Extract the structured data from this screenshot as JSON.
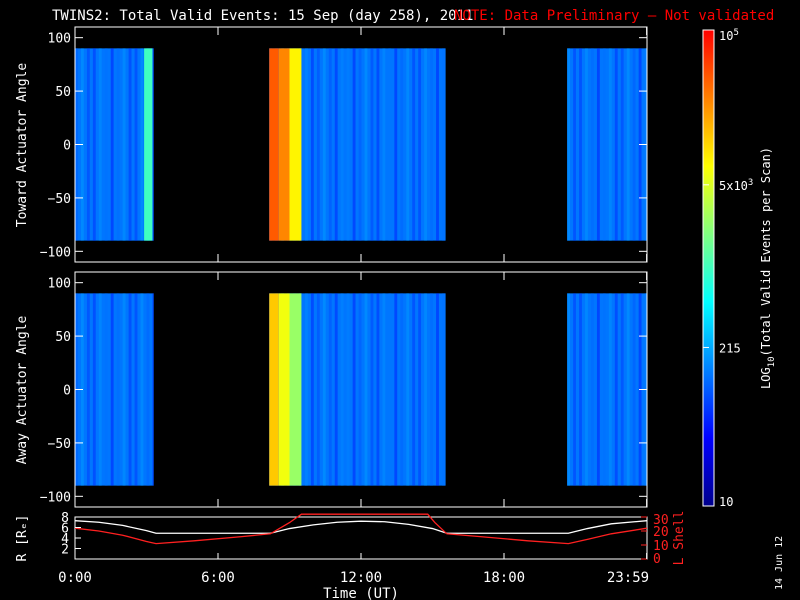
{
  "header": {
    "title": "TWINS2: Total Valid Events: 15 Sep (day 258), 2011",
    "note": "NOTE: Data Preliminary – Not validated"
  },
  "stamp": "14 Jun 12",
  "colors": {
    "background": "#000000",
    "foreground": "#ffffff",
    "note": "#ff0000",
    "lshell": "#ff2020",
    "radius": "#ffffff"
  },
  "chart_data": [
    {
      "type": "heatmap",
      "panel": "top",
      "ylabel": "Toward Actuator Angle",
      "ylim": [
        -110,
        110
      ],
      "yticks": [
        100,
        50,
        0,
        -50,
        -100
      ],
      "ytick_labels": [
        "100",
        "50",
        "0",
        "−50",
        "−100"
      ],
      "xlim": [
        0,
        24
      ],
      "data_ylim": [
        -90,
        90
      ],
      "data_segments": [
        {
          "start": 0.0,
          "end": 3.3
        },
        {
          "start": 8.15,
          "end": 15.55
        },
        {
          "start": 20.65,
          "end": 24.0
        }
      ],
      "features": [
        {
          "hour_start": 8.15,
          "hour_end": 8.55,
          "log_level": 4.6
        },
        {
          "hour_start": 8.55,
          "hour_end": 9.0,
          "log_level": 4.4
        },
        {
          "hour_start": 9.0,
          "hour_end": 9.5,
          "log_level": 3.9
        },
        {
          "hour_start": 2.9,
          "hour_end": 3.25,
          "log_level": 3.0
        }
      ]
    },
    {
      "type": "heatmap",
      "panel": "bottom",
      "ylabel": "Away Actuator Angle",
      "ylim": [
        -110,
        110
      ],
      "yticks": [
        100,
        50,
        0,
        -50,
        -100
      ],
      "ytick_labels": [
        "100",
        "50",
        "0",
        "−50",
        "−100"
      ],
      "xlim": [
        0,
        24
      ],
      "data_ylim": [
        -90,
        90
      ],
      "data_segments": [
        {
          "start": 0.0,
          "end": 3.3
        },
        {
          "start": 8.15,
          "end": 15.55
        },
        {
          "start": 20.65,
          "end": 24.0
        }
      ],
      "features": [
        {
          "hour_start": 8.15,
          "hour_end": 8.55,
          "log_level": 4.1
        },
        {
          "hour_start": 8.55,
          "hour_end": 9.0,
          "log_level": 3.8
        },
        {
          "hour_start": 9.0,
          "hour_end": 9.5,
          "log_level": 3.4
        }
      ]
    },
    {
      "type": "line",
      "panel": "orbit",
      "xlabel": "Time (UT)",
      "xlim": [
        0,
        24
      ],
      "xticks": [
        0,
        6,
        12,
        18,
        23.983
      ],
      "xtick_labels": [
        "0:00",
        "6:00",
        "12:00",
        "18:00",
        "23:59"
      ],
      "ylabel_left": "R [Rₑ]",
      "ylim_left": [
        0,
        8
      ],
      "yticks_left": [
        0,
        2,
        4,
        6,
        8
      ],
      "ytick_labels_left": [
        "0",
        "2",
        "4",
        "6",
        "8"
      ],
      "ylabel_right": "L Shell",
      "ylim_right": [
        0,
        30
      ],
      "yticks_right": [
        0,
        10,
        20,
        30
      ],
      "ytick_labels_right": [
        "0",
        "10",
        "20",
        "30"
      ],
      "series": [
        {
          "axis": "left",
          "color": "#ffffff",
          "x": [
            0,
            1,
            2,
            3,
            3.4,
            5,
            7,
            8.2,
            9,
            10,
            11,
            12,
            13,
            14,
            15,
            15.6,
            17,
            19,
            20.7,
            21.5,
            22.5,
            24
          ],
          "y": [
            7.3,
            7.0,
            6.4,
            5.4,
            4.9,
            4.9,
            4.9,
            4.9,
            5.8,
            6.5,
            7.0,
            7.2,
            7.1,
            6.6,
            5.8,
            4.9,
            4.9,
            4.9,
            4.9,
            5.8,
            6.7,
            7.3
          ]
        },
        {
          "axis": "right",
          "color": "#ff2020",
          "x": [
            0,
            1,
            2,
            3,
            3.4,
            5,
            7,
            8.2,
            9,
            9.5,
            14.8,
            15.1,
            15.6,
            17,
            19,
            20.7,
            21.5,
            22.5,
            24
          ],
          "y": [
            22,
            20,
            17,
            12.5,
            11,
            13,
            16,
            18,
            26,
            32,
            32,
            26,
            18,
            16,
            13,
            11,
            14,
            18,
            22
          ]
        }
      ]
    },
    {
      "type": "colorbar",
      "label": "LOG10(Total Valid Events per Scan)",
      "label_main": "LOG",
      "label_sub": "10",
      "label_rest": "(Total Valid Events per Scan)",
      "scale": "log",
      "range": [
        10,
        100000
      ],
      "tick_labels": [
        {
          "value": 100000,
          "base": "10",
          "exp": "5"
        },
        {
          "value": 5000,
          "base": "5x10",
          "exp": "3"
        },
        {
          "value": 215,
          "base": "215",
          "exp": ""
        },
        {
          "value": 10,
          "base": "10",
          "exp": ""
        }
      ],
      "colormap": [
        "#00008c",
        "#0000ff",
        "#0080ff",
        "#00ffff",
        "#80ff80",
        "#ffff00",
        "#ff8000",
        "#ff0000"
      ]
    }
  ]
}
